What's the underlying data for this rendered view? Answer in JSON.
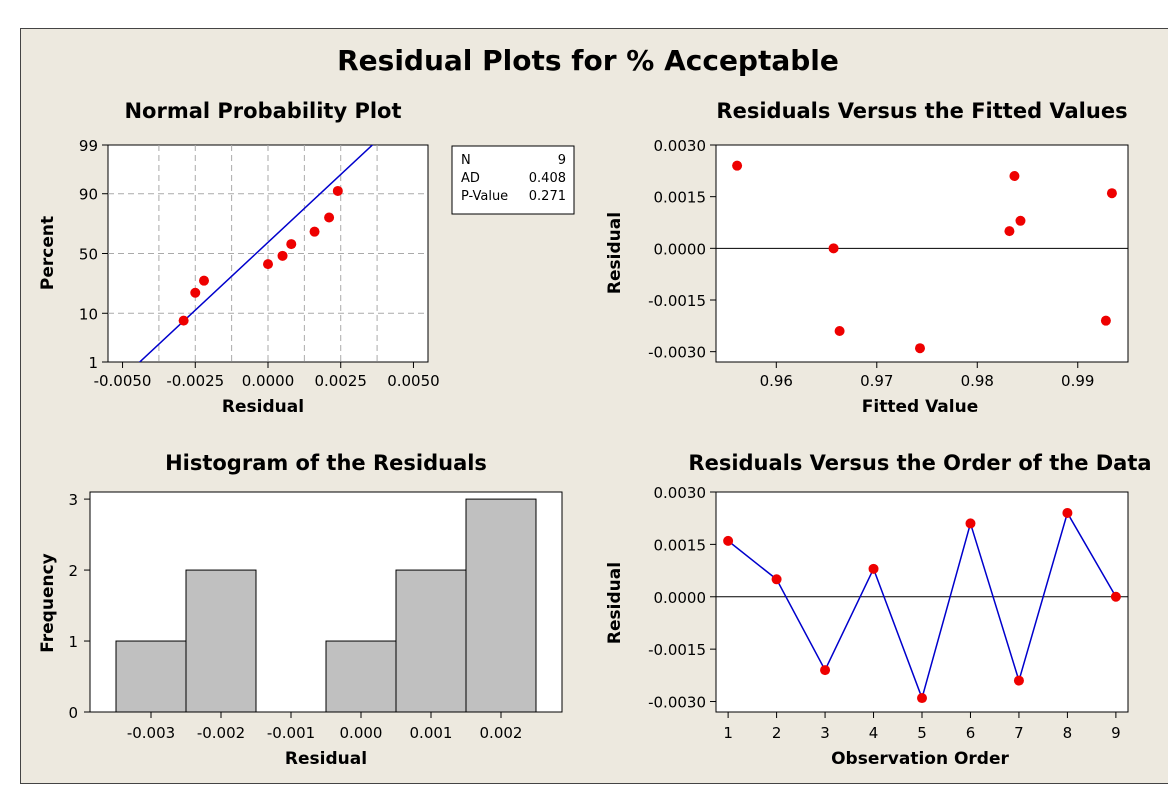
{
  "title": "Residual Plots for % Acceptable",
  "colors": {
    "point": "#ee0000",
    "line": "#0000cc",
    "bar": "#c0c0c0",
    "frame_bg": "#ede9df",
    "plot_bg": "#ffffff"
  },
  "chart_data": [
    {
      "type": "scatter",
      "title": "Normal Probability Plot",
      "xlabel": "Residual",
      "ylabel": "Percent",
      "xlim": [
        -0.0055,
        0.0055
      ],
      "x_ticks": [
        "-0.0050",
        "-0.0025",
        "0.0000",
        "0.0025",
        "0.0050"
      ],
      "y_ticks": [
        "1",
        "10",
        "50",
        "90",
        "99"
      ],
      "grid": true,
      "points": [
        {
          "x": -0.0029,
          "y": 7.5
        },
        {
          "x": -0.0025,
          "y": 20
        },
        {
          "x": -0.0022,
          "y": 28
        },
        {
          "x": 0.0,
          "y": 41
        },
        {
          "x": 0.0005,
          "y": 48
        },
        {
          "x": 0.0008,
          "y": 58
        },
        {
          "x": 0.0016,
          "y": 68
        },
        {
          "x": 0.0021,
          "y": 78
        },
        {
          "x": 0.0024,
          "y": 91
        }
      ],
      "fit_line": {
        "x": [
          -0.0049,
          0.0049
        ],
        "y_pct": [
          0.45,
          99.9
        ]
      },
      "stats_box": [
        {
          "label": "N",
          "value": "9"
        },
        {
          "label": "AD",
          "value": "0.408"
        },
        {
          "label": "P-Value",
          "value": "0.271"
        }
      ]
    },
    {
      "type": "scatter",
      "title": "Residuals Versus the Fitted Values",
      "xlabel": "Fitted Value",
      "ylabel": "Residual",
      "xlim": [
        0.954,
        0.995
      ],
      "ylim": [
        -0.0033,
        0.003
      ],
      "x_ticks": [
        "0.96",
        "0.97",
        "0.98",
        "0.99"
      ],
      "y_ticks": [
        "0.0030",
        "0.0015",
        "0.0000",
        "-0.0015",
        "-0.0030"
      ],
      "reference_line": 0,
      "points": [
        {
          "x": 0.9561,
          "y": 0.0024
        },
        {
          "x": 0.9657,
          "y": 0.0
        },
        {
          "x": 0.9663,
          "y": -0.0024
        },
        {
          "x": 0.9743,
          "y": -0.0029
        },
        {
          "x": 0.9832,
          "y": 0.0005
        },
        {
          "x": 0.9837,
          "y": 0.0021
        },
        {
          "x": 0.9843,
          "y": 0.0008
        },
        {
          "x": 0.9928,
          "y": -0.0021
        },
        {
          "x": 0.9934,
          "y": 0.0016
        }
      ]
    },
    {
      "type": "bar",
      "title": "Histogram of the Residuals",
      "xlabel": "Residual",
      "ylabel": "Frequency",
      "categories": [
        "-0.003",
        "-0.002",
        "-0.001",
        "0.000",
        "0.001",
        "0.002"
      ],
      "values": [
        1,
        2,
        0,
        1,
        2,
        3
      ],
      "ylim": [
        0,
        3.1
      ],
      "y_ticks": [
        "0",
        "1",
        "2",
        "3"
      ]
    },
    {
      "type": "line",
      "title": "Residuals Versus the Order of the Data",
      "xlabel": "Observation Order",
      "ylabel": "Residual",
      "x": [
        1,
        2,
        3,
        4,
        5,
        6,
        7,
        8,
        9
      ],
      "y": [
        0.0016,
        0.0005,
        -0.0021,
        0.0008,
        -0.0029,
        0.0021,
        -0.0024,
        0.0024,
        0.0
      ],
      "xlim": [
        0.75,
        9.25
      ],
      "ylim": [
        -0.0033,
        0.003
      ],
      "x_ticks": [
        "1",
        "2",
        "3",
        "4",
        "5",
        "6",
        "7",
        "8",
        "9"
      ],
      "y_ticks": [
        "0.0030",
        "0.0015",
        "0.0000",
        "-0.0015",
        "-0.0030"
      ],
      "reference_line": 0
    }
  ]
}
